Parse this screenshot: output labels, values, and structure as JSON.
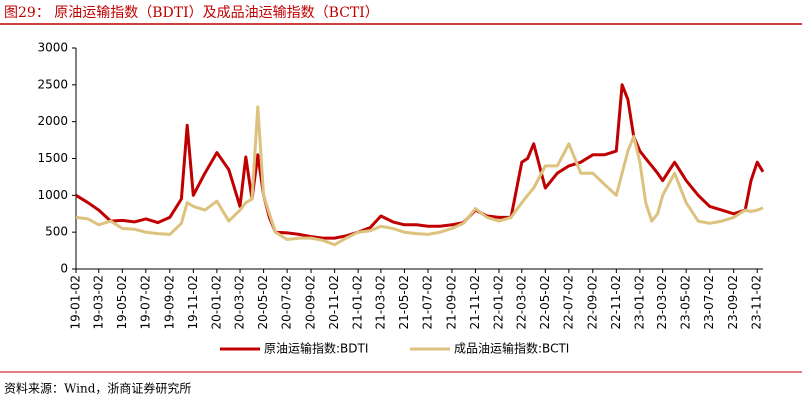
{
  "chart_data": {
    "type": "line",
    "title": "图29：  原油运输指数（BDTI）及成品油运输指数（BCTI）",
    "source": "资料来源：Wind，浙商证券研究所",
    "x": [
      "19-01-02",
      "19-02-02",
      "19-03-02",
      "19-04-02",
      "19-05-02",
      "19-06-02",
      "19-07-02",
      "19-08-02",
      "19-09-02",
      "19-10-02",
      "19-10-17",
      "19-11-02",
      "19-12-02",
      "20-01-02",
      "20-02-02",
      "20-03-02",
      "20-03-17",
      "20-04-02",
      "20-04-17",
      "20-05-02",
      "20-05-17",
      "20-06-02",
      "20-07-02",
      "20-08-02",
      "20-09-02",
      "20-10-02",
      "20-11-02",
      "20-12-02",
      "21-01-02",
      "21-02-02",
      "21-03-02",
      "21-04-02",
      "21-05-02",
      "21-06-02",
      "21-07-02",
      "21-08-02",
      "21-09-02",
      "21-10-02",
      "21-11-02",
      "21-12-02",
      "22-01-02",
      "22-02-02",
      "22-03-02",
      "22-03-17",
      "22-04-02",
      "22-05-02",
      "22-06-02",
      "22-07-02",
      "22-08-02",
      "22-09-02",
      "22-10-02",
      "22-11-02",
      "22-11-17",
      "22-12-02",
      "22-12-17",
      "23-01-02",
      "23-01-17",
      "23-02-02",
      "23-02-17",
      "23-03-02",
      "23-04-02",
      "23-05-02",
      "23-06-02",
      "23-07-02",
      "23-08-02",
      "23-09-02",
      "23-10-02",
      "23-10-17",
      "23-11-02",
      "23-11-17"
    ],
    "series": [
      {
        "name": "原油运输指数:BDTI",
        "color": "#c00000",
        "values": [
          1000,
          900,
          800,
          650,
          660,
          640,
          680,
          630,
          700,
          950,
          1950,
          1000,
          1300,
          1580,
          1350,
          850,
          1520,
          950,
          1550,
          1000,
          700,
          500,
          490,
          470,
          440,
          420,
          420,
          450,
          500,
          560,
          720,
          640,
          600,
          600,
          580,
          580,
          600,
          630,
          800,
          720,
          700,
          700,
          1450,
          1500,
          1700,
          1100,
          1300,
          1400,
          1450,
          1550,
          1550,
          1600,
          2500,
          2300,
          1800,
          1600,
          1500,
          1400,
          1300,
          1200,
          1450,
          1200,
          1000,
          850,
          800,
          750,
          800,
          1200,
          1450,
          1320
        ]
      },
      {
        "name": "成品油运输指数:BCTI",
        "color": "#dcc27e",
        "values": [
          700,
          680,
          600,
          650,
          550,
          540,
          500,
          480,
          470,
          620,
          900,
          850,
          800,
          920,
          650,
          800,
          900,
          950,
          2200,
          1000,
          750,
          500,
          400,
          420,
          420,
          390,
          330,
          420,
          500,
          520,
          580,
          550,
          500,
          480,
          470,
          500,
          550,
          620,
          820,
          700,
          650,
          700,
          900,
          1000,
          1100,
          1400,
          1400,
          1700,
          1300,
          1300,
          1150,
          1000,
          1300,
          1600,
          1800,
          1450,
          900,
          650,
          750,
          1000,
          1300,
          900,
          650,
          620,
          650,
          700,
          800,
          780,
          800,
          830
        ]
      }
    ],
    "xlim": [
      "19-01-02",
      "23-11-17"
    ],
    "xticks": [
      "19-01-02",
      "19-03-02",
      "19-05-02",
      "19-07-02",
      "19-09-02",
      "19-11-02",
      "20-01-02",
      "20-03-02",
      "20-05-02",
      "20-07-02",
      "20-09-02",
      "20-11-02",
      "21-01-02",
      "21-03-02",
      "21-05-02",
      "21-07-02",
      "21-09-02",
      "21-11-02",
      "22-01-02",
      "22-03-02",
      "22-05-02",
      "22-07-02",
      "22-09-02",
      "22-11-02",
      "23-01-02",
      "23-03-02",
      "23-05-02",
      "23-07-02",
      "23-09-02",
      "23-11-02"
    ],
    "ylim": [
      0,
      3000
    ],
    "yticks": [
      0,
      500,
      1000,
      1500,
      2000,
      2500,
      3000
    ]
  }
}
